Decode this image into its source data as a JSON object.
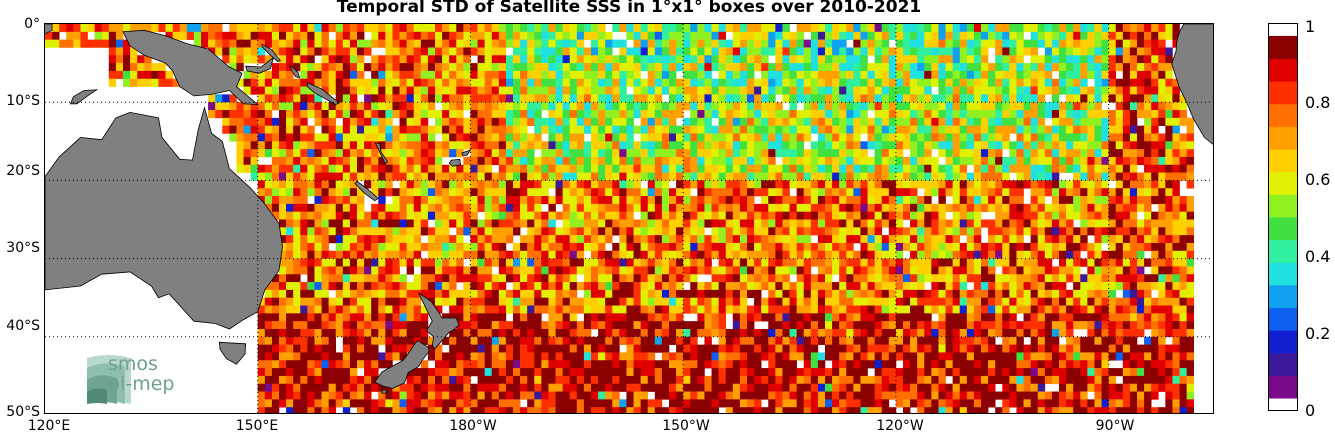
{
  "title": "Temporal STD of Satellite SSS in 1°x1° boxes over 2010-2021",
  "chart_data": {
    "type": "heatmap",
    "title": "Temporal STD of Satellite SSS in 1°x1° boxes over 2010-2021",
    "lon_range": [
      120,
      285
    ],
    "lat_range": [
      -50,
      0
    ],
    "cell_size_deg": 1,
    "lat_ticks": [
      "0°",
      "10°S",
      "20°S",
      "30°S",
      "40°S",
      "50°S"
    ],
    "lon_ticks": [
      "120°E",
      "150°E",
      "180°W",
      "150°W",
      "120°W",
      "90°W"
    ],
    "colorbar": {
      "range": [
        0,
        1
      ],
      "tick_labels": [
        "0",
        "0.2",
        "0.4",
        "0.6",
        "0.8",
        "1"
      ],
      "colors": [
        "#7a0a8a",
        "#3a1a9a",
        "#1020d0",
        "#1060f0",
        "#10a0f0",
        "#20e0e0",
        "#30f0a0",
        "#40e040",
        "#90f020",
        "#e0f000",
        "#ffd000",
        "#ffa000",
        "#ff7000",
        "#ff3000",
        "#e00000",
        "#8b0000"
      ]
    },
    "land_color": "#808080",
    "grid": "dotted"
  },
  "logo": {
    "line1": "smos",
    "line2": "pi-mep"
  }
}
